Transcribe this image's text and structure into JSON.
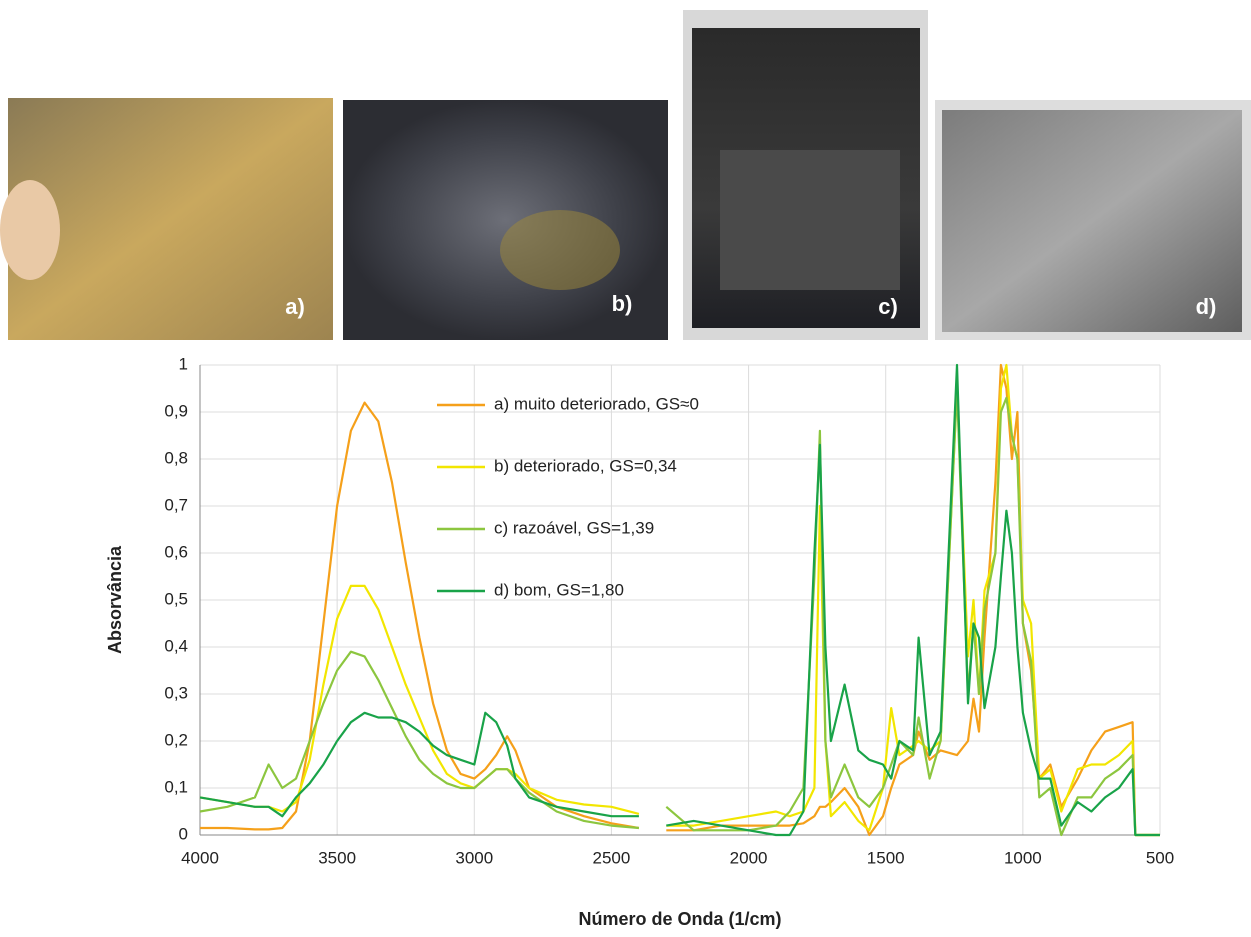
{
  "chart_data": {
    "type": "line",
    "panels": [
      "a)",
      "b)",
      "c)",
      "d)"
    ],
    "x_label": "Número de Onda (1/cm)",
    "y_label": "Absorvância",
    "xlim": [
      4000,
      500
    ],
    "ylim": [
      0,
      1
    ],
    "xticks": [
      4000,
      3500,
      3000,
      2500,
      2000,
      1500,
      1000,
      500
    ],
    "yticks": [
      0,
      {
        "value": 0.1,
        "label": "0,1"
      },
      {
        "value": 0.2,
        "label": "0,2"
      },
      {
        "value": 0.3,
        "label": "0,3"
      },
      {
        "value": 0.4,
        "label": "0,4"
      },
      {
        "value": 0.5,
        "label": "0,5"
      },
      {
        "value": 0.6,
        "label": "0,6"
      },
      {
        "value": 0.7,
        "label": "0,7"
      },
      {
        "value": 0.8,
        "label": "0,8"
      },
      {
        "value": 0.9,
        "label": "0,9"
      },
      1
    ],
    "grid": true,
    "x": [
      4000,
      3900,
      3800,
      3750,
      3700,
      3650,
      3600,
      3550,
      3500,
      3450,
      3400,
      3350,
      3300,
      3250,
      3200,
      3150,
      3100,
      3050,
      3000,
      2960,
      2920,
      2880,
      2850,
      2800,
      2700,
      2600,
      2500,
      2400,
      2350,
      2300,
      2200,
      2100,
      2000,
      1900,
      1850,
      1800,
      1760,
      1740,
      1720,
      1700,
      1650,
      1600,
      1560,
      1510,
      1480,
      1450,
      1400,
      1380,
      1340,
      1300,
      1240,
      1200,
      1180,
      1160,
      1140,
      1100,
      1080,
      1060,
      1040,
      1020,
      1000,
      970,
      940,
      900,
      860,
      800,
      750,
      700,
      650,
      600,
      590,
      500
    ],
    "series": [
      {
        "name": "a) muito deteriorado, GS≈0",
        "color": "#f5a01a",
        "values": [
          0.015,
          0.015,
          0.012,
          0.012,
          0.015,
          0.05,
          0.2,
          0.45,
          0.7,
          0.86,
          0.92,
          0.88,
          0.75,
          0.58,
          0.42,
          0.28,
          0.18,
          0.13,
          0.12,
          0.14,
          0.17,
          0.21,
          0.18,
          0.1,
          0.06,
          0.04,
          0.025,
          0.015,
          null,
          0.01,
          0.01,
          0.02,
          0.02,
          0.02,
          0.02,
          0.025,
          0.04,
          0.06,
          0.06,
          0.07,
          0.1,
          0.06,
          0.0,
          0.04,
          0.1,
          0.15,
          0.17,
          0.22,
          0.16,
          0.18,
          0.17,
          0.2,
          0.29,
          0.22,
          0.42,
          0.75,
          1.0,
          0.95,
          0.8,
          0.9,
          0.45,
          0.35,
          0.12,
          0.15,
          0.06,
          0.12,
          0.18,
          0.22,
          0.23,
          0.24,
          0,
          0
        ]
      },
      {
        "name": "b) deteriorado, GS=0,34",
        "color": "#f2e600",
        "values": [
          0.08,
          0.07,
          0.06,
          0.06,
          0.05,
          0.07,
          0.16,
          0.32,
          0.46,
          0.53,
          0.53,
          0.48,
          0.4,
          0.32,
          0.25,
          0.18,
          0.13,
          0.11,
          0.1,
          0.12,
          0.14,
          0.14,
          0.13,
          0.1,
          0.075,
          0.065,
          0.06,
          0.045,
          null,
          0.02,
          0.02,
          0.03,
          0.04,
          0.05,
          0.04,
          0.05,
          0.1,
          0.7,
          0.2,
          0.04,
          0.07,
          0.03,
          0.01,
          0.1,
          0.27,
          0.17,
          0.19,
          0.2,
          0.18,
          0.2,
          0.95,
          0.38,
          0.5,
          0.3,
          0.52,
          0.6,
          0.95,
          1.0,
          0.85,
          0.8,
          0.5,
          0.45,
          0.12,
          0.14,
          0.05,
          0.14,
          0.15,
          0.15,
          0.17,
          0.2,
          0,
          0
        ]
      },
      {
        "name": "c) razoável, GS=1,39",
        "color": "#8cc63f",
        "values": [
          0.05,
          0.06,
          0.08,
          0.15,
          0.1,
          0.12,
          0.2,
          0.28,
          0.35,
          0.39,
          0.38,
          0.33,
          0.27,
          0.21,
          0.16,
          0.13,
          0.11,
          0.1,
          0.1,
          0.12,
          0.14,
          0.14,
          0.12,
          0.09,
          0.05,
          0.03,
          0.02,
          0.015,
          null,
          0.06,
          0.01,
          0.01,
          0.01,
          0.02,
          0.05,
          0.1,
          0.55,
          0.86,
          0.2,
          0.08,
          0.15,
          0.08,
          0.06,
          0.1,
          0.15,
          0.2,
          0.17,
          0.25,
          0.12,
          0.2,
          0.95,
          0.3,
          0.45,
          0.3,
          0.48,
          0.6,
          0.9,
          0.93,
          0.85,
          0.8,
          0.45,
          0.37,
          0.08,
          0.1,
          0.0,
          0.08,
          0.08,
          0.12,
          0.14,
          0.17,
          0,
          0
        ]
      },
      {
        "name": "d) bom, GS=1,80",
        "color": "#19a349",
        "values": [
          0.08,
          0.07,
          0.06,
          0.06,
          0.04,
          0.08,
          0.11,
          0.15,
          0.2,
          0.24,
          0.26,
          0.25,
          0.25,
          0.24,
          0.22,
          0.19,
          0.17,
          0.16,
          0.15,
          0.26,
          0.24,
          0.19,
          0.12,
          0.08,
          0.06,
          0.05,
          0.04,
          0.04,
          null,
          0.02,
          0.03,
          0.02,
          0.01,
          0.0,
          0.0,
          0.05,
          0.6,
          0.83,
          0.4,
          0.2,
          0.32,
          0.18,
          0.16,
          0.15,
          0.12,
          0.2,
          0.18,
          0.42,
          0.17,
          0.22,
          1.0,
          0.28,
          0.45,
          0.42,
          0.27,
          0.4,
          0.55,
          0.69,
          0.6,
          0.4,
          0.26,
          0.18,
          0.12,
          0.12,
          0.02,
          0.07,
          0.05,
          0.08,
          0.1,
          0.14,
          0,
          0
        ]
      }
    ]
  }
}
